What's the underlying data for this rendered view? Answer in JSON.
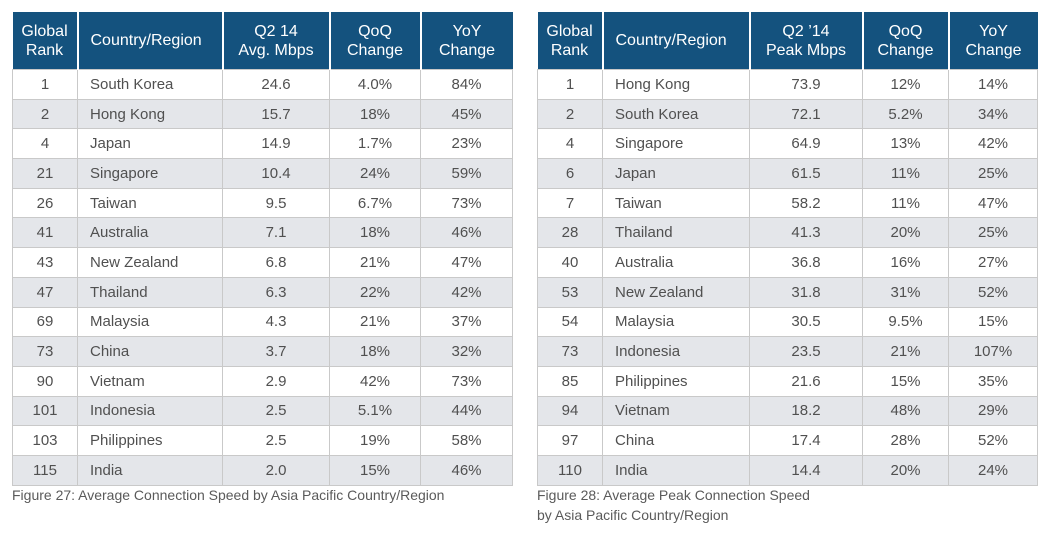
{
  "left_table": {
    "headers": [
      "Global\nRank",
      "Country/Region",
      "Q2 14\nAvg. Mbps",
      "QoQ\nChange",
      "YoY\nChange"
    ],
    "rows": [
      [
        "1",
        "South Korea",
        "24.6",
        "4.0%",
        "84%"
      ],
      [
        "2",
        "Hong Kong",
        "15.7",
        "18%",
        "45%"
      ],
      [
        "4",
        "Japan",
        "14.9",
        "1.7%",
        "23%"
      ],
      [
        "21",
        "Singapore",
        "10.4",
        "24%",
        "59%"
      ],
      [
        "26",
        "Taiwan",
        "9.5",
        "6.7%",
        "73%"
      ],
      [
        "41",
        "Australia",
        "7.1",
        "18%",
        "46%"
      ],
      [
        "43",
        "New Zealand",
        "6.8",
        "21%",
        "47%"
      ],
      [
        "47",
        "Thailand",
        "6.3",
        "22%",
        "42%"
      ],
      [
        "69",
        "Malaysia",
        "4.3",
        "21%",
        "37%"
      ],
      [
        "73",
        "China",
        "3.7",
        "18%",
        "32%"
      ],
      [
        "90",
        "Vietnam",
        "2.9",
        "42%",
        "73%"
      ],
      [
        "101",
        "Indonesia",
        "2.5",
        "5.1%",
        "44%"
      ],
      [
        "103",
        "Philippines",
        "2.5",
        "19%",
        "58%"
      ],
      [
        "115",
        "India",
        "2.0",
        "15%",
        "46%"
      ]
    ],
    "caption": "Figure 27: Average Connection Speed by Asia Pacific Country/Region"
  },
  "right_table": {
    "headers": [
      "Global\nRank",
      "Country/Region",
      "Q2 ’14\nPeak Mbps",
      "QoQ\nChange",
      "YoY\nChange"
    ],
    "rows": [
      [
        "1",
        "Hong Kong",
        "73.9",
        "12%",
        "14%"
      ],
      [
        "2",
        "South Korea",
        "72.1",
        "5.2%",
        "34%"
      ],
      [
        "4",
        "Singapore",
        "64.9",
        "13%",
        "42%"
      ],
      [
        "6",
        "Japan",
        "61.5",
        "11%",
        "25%"
      ],
      [
        "7",
        "Taiwan",
        "58.2",
        "11%",
        "47%"
      ],
      [
        "28",
        "Thailand",
        "41.3",
        "20%",
        "25%"
      ],
      [
        "40",
        "Australia",
        "36.8",
        "16%",
        "27%"
      ],
      [
        "53",
        "New Zealand",
        "31.8",
        "31%",
        "52%"
      ],
      [
        "54",
        "Malaysia",
        "30.5",
        "9.5%",
        "15%"
      ],
      [
        "73",
        "Indonesia",
        "23.5",
        "21%",
        "107%"
      ],
      [
        "85",
        "Philippines",
        "21.6",
        "15%",
        "35%"
      ],
      [
        "94",
        "Vietnam",
        "18.2",
        "48%",
        "29%"
      ],
      [
        "97",
        "China",
        "17.4",
        "28%",
        "52%"
      ],
      [
        "110",
        "India",
        "14.4",
        "20%",
        "24%"
      ]
    ],
    "caption": "Figure 28: Average Peak Connection Speed\nby Asia Pacific Country/Region"
  },
  "colors": {
    "header_bg": "#14527e",
    "header_text": "#ffffff",
    "row_alt_bg": "#e4e6ea",
    "row_bg": "#ffffff",
    "grid_line": "#c9c9c9"
  }
}
